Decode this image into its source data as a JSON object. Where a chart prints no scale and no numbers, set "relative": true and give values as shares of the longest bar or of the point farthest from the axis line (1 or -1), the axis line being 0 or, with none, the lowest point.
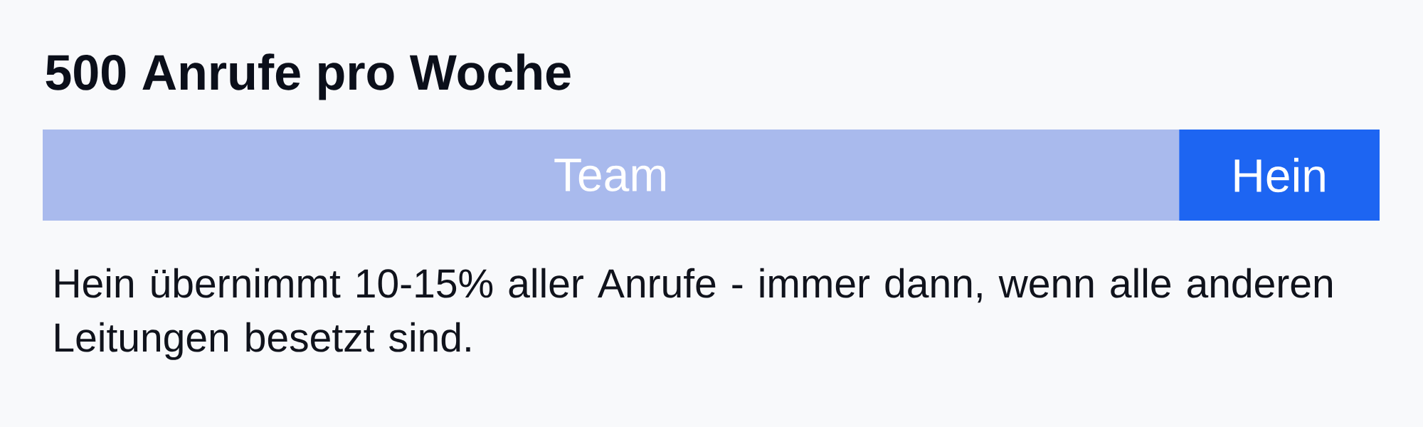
{
  "chart_data": {
    "type": "bar",
    "orientation": "horizontal",
    "stacked": true,
    "relative": true,
    "title": "500 Anrufe pro Woche",
    "categories": [
      null
    ],
    "series": [
      {
        "name": "Team",
        "color": "#a9baed",
        "values": [
          0.85
        ]
      },
      {
        "name": "Hein",
        "color": "#1d65f2",
        "values": [
          0.15
        ]
      }
    ],
    "annotations": [
      "Hein übernimmt 10-15% aller Anrufe - immer dann, wenn alle anderen Leitungen besetzt sind."
    ]
  }
}
